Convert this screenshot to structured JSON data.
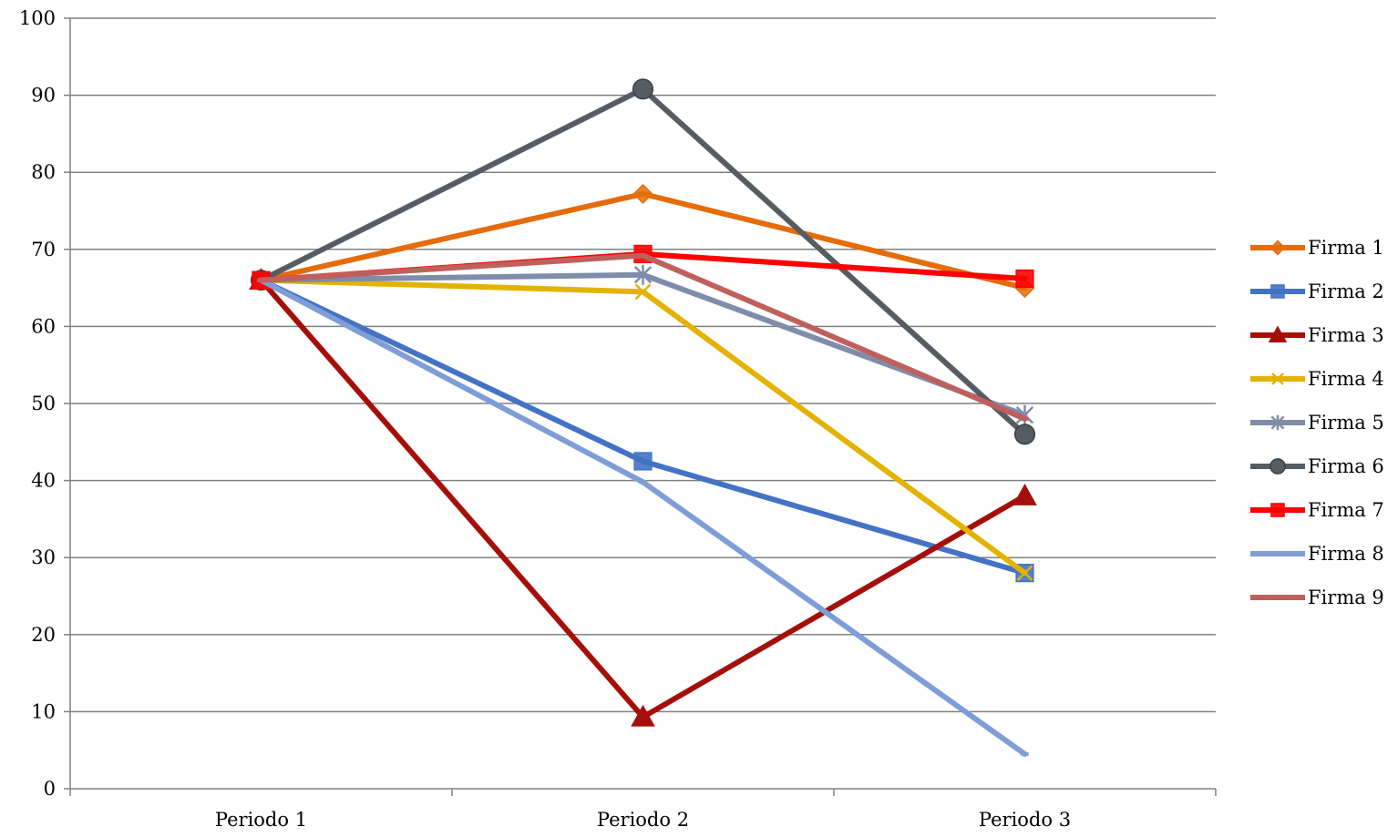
{
  "chart_data": {
    "type": "line",
    "categories": [
      "Periodo 1",
      "Periodo 2",
      "Periodo 3"
    ],
    "ylim": [
      0,
      100
    ],
    "yticks": [
      0,
      10,
      20,
      30,
      40,
      50,
      60,
      70,
      80,
      90,
      100
    ],
    "grid": true,
    "legend_position": "right",
    "series": [
      {
        "name": "Firma 1",
        "values": [
          66,
          77.2,
          65
        ],
        "color": "#E46C0A",
        "marker": "diamond"
      },
      {
        "name": "Firma 2",
        "values": [
          66,
          42.5,
          28
        ],
        "color": "#4472C4",
        "marker": "square"
      },
      {
        "name": "Firma 3",
        "values": [
          66,
          9.3,
          38
        ],
        "color": "#A50F0A",
        "marker": "triangle"
      },
      {
        "name": "Firma 4",
        "values": [
          66,
          64.5,
          28
        ],
        "color": "#E3B300",
        "marker": "x"
      },
      {
        "name": "Firma 5",
        "values": [
          66,
          66.7,
          48.5
        ],
        "color": "#7F8DAA",
        "marker": "asterisk"
      },
      {
        "name": "Firma 6",
        "values": [
          66,
          90.8,
          46
        ],
        "color": "#565C63",
        "marker": "circle"
      },
      {
        "name": "Firma 7",
        "values": [
          66,
          69.4,
          66.2
        ],
        "color": "#FF0000",
        "marker": "square"
      },
      {
        "name": "Firma 8",
        "values": [
          66,
          39.8,
          4.5
        ],
        "color": "#7F9DD6",
        "marker": "dash"
      },
      {
        "name": "Firma 9",
        "values": [
          66,
          69.2,
          48
        ],
        "color": "#C0605C",
        "marker": "dash"
      }
    ]
  }
}
